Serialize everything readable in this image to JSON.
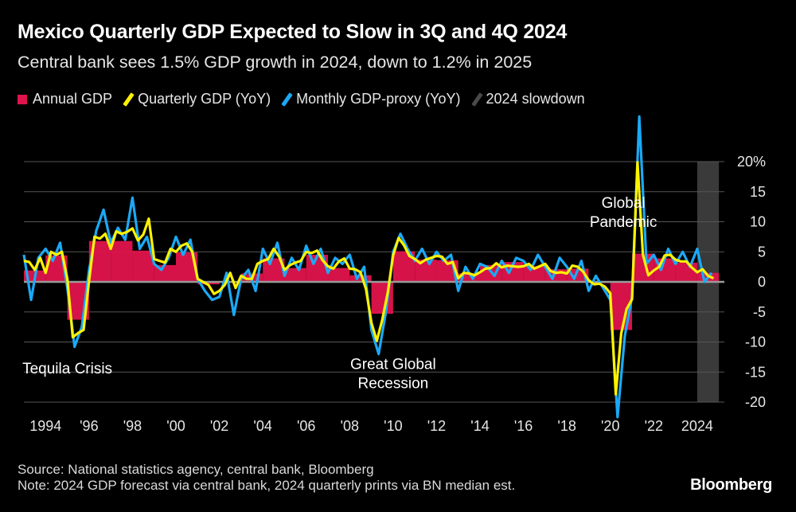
{
  "title": "Mexico Quarterly GDP Expected to Slow in 3Q and 4Q 2024",
  "subtitle": "Central bank sees 1.5% GDP growth in 2024, down to 1.2% in 2025",
  "legend": [
    {
      "label": "Annual GDP",
      "color": "#e0144c",
      "kind": "square"
    },
    {
      "label": "Quarterly GDP (YoY)",
      "color": "#fff200",
      "kind": "slash"
    },
    {
      "label": "Monthly GDP-proxy (YoY)",
      "color": "#1ba9f5",
      "kind": "slash"
    },
    {
      "label": "2024 slowdown",
      "color": "#3a3a3a",
      "kind": "slash"
    }
  ],
  "source_line1": "Source: National statistics agency, central bank, Bloomberg",
  "source_line2": "Note: 2024 GDP forecast via central bank, 2024 quarterly prints via BN median est.",
  "brand": "Bloomberg",
  "colors": {
    "annual": "#e0144c",
    "quarterly": "#fff200",
    "monthly": "#1ba9f5",
    "shade": "#3a3a3a",
    "grid": "#555555",
    "zero": "#9a9a9a"
  },
  "chart_data": {
    "type": "line",
    "title": "Mexico Quarterly GDP Expected to Slow in 3Q and 4Q 2024",
    "ylabel": "",
    "xlabel": "",
    "xlim": [
      1993.0,
      2025.25
    ],
    "ylim": [
      -20,
      20
    ],
    "y_ticks": [
      20,
      15,
      10,
      5,
      0,
      -5,
      -10,
      -15,
      -20
    ],
    "y_tick_labels": [
      "20%",
      "15",
      "10",
      "5",
      "0",
      "-5",
      "-10",
      "-15",
      "-20"
    ],
    "x_ticks": [
      1994,
      1996,
      1998,
      2000,
      2002,
      2004,
      2006,
      2008,
      2010,
      2012,
      2014,
      2016,
      2018,
      2020,
      2022,
      2024
    ],
    "x_tick_labels": [
      "1994",
      "'96",
      "'98",
      "'00",
      "'02",
      "'04",
      "'06",
      "'08",
      "'10",
      "'12",
      "'14",
      "'16",
      "'18",
      "'20",
      "'22",
      "2024"
    ],
    "shaded_region": {
      "label": "2024 slowdown",
      "x_start": 2024.0,
      "x_end": 2025.0
    },
    "annual_gdp": {
      "name": "Annual GDP",
      "years": [
        1993,
        1994,
        1995,
        1996,
        1997,
        1998,
        1999,
        2000,
        2001,
        2002,
        2003,
        2004,
        2005,
        2006,
        2007,
        2008,
        2009,
        2010,
        2011,
        2012,
        2013,
        2014,
        2015,
        2016,
        2017,
        2018,
        2019,
        2020,
        2021,
        2022,
        2023,
        2024
      ],
      "values": [
        1.9,
        4.4,
        -6.3,
        6.8,
        6.8,
        5.2,
        2.8,
        4.9,
        -0.4,
        0.0,
        1.4,
        3.9,
        2.3,
        4.5,
        2.3,
        1.1,
        -5.3,
        5.1,
        3.7,
        3.6,
        1.4,
        2.8,
        3.3,
        2.6,
        2.1,
        2.2,
        -0.2,
        -8.0,
        4.7,
        3.9,
        3.2,
        1.5
      ]
    },
    "quarterly_gdp": {
      "name": "Quarterly GDP (YoY)",
      "x": [
        1993.0,
        1993.25,
        1993.5,
        1993.75,
        1994.0,
        1994.25,
        1994.5,
        1994.75,
        1995.0,
        1995.25,
        1995.5,
        1995.75,
        1996.0,
        1996.25,
        1996.5,
        1996.75,
        1997.0,
        1997.25,
        1997.5,
        1997.75,
        1998.0,
        1998.25,
        1998.5,
        1998.75,
        1999.0,
        1999.25,
        1999.5,
        1999.75,
        2000.0,
        2000.25,
        2000.5,
        2000.75,
        2001.0,
        2001.25,
        2001.5,
        2001.75,
        2002.0,
        2002.25,
        2002.5,
        2002.75,
        2003.0,
        2003.25,
        2003.5,
        2003.75,
        2004.0,
        2004.25,
        2004.5,
        2004.75,
        2005.0,
        2005.25,
        2005.5,
        2005.75,
        2006.0,
        2006.25,
        2006.5,
        2006.75,
        2007.0,
        2007.25,
        2007.5,
        2007.75,
        2008.0,
        2008.25,
        2008.5,
        2008.75,
        2009.0,
        2009.25,
        2009.5,
        2009.75,
        2010.0,
        2010.25,
        2010.5,
        2010.75,
        2011.0,
        2011.25,
        2011.5,
        2011.75,
        2012.0,
        2012.25,
        2012.5,
        2012.75,
        2013.0,
        2013.25,
        2013.5,
        2013.75,
        2014.0,
        2014.25,
        2014.5,
        2014.75,
        2015.0,
        2015.25,
        2015.5,
        2015.75,
        2016.0,
        2016.25,
        2016.5,
        2016.75,
        2017.0,
        2017.25,
        2017.5,
        2017.75,
        2018.0,
        2018.25,
        2018.5,
        2018.75,
        2019.0,
        2019.25,
        2019.5,
        2019.75,
        2020.0,
        2020.25,
        2020.5,
        2020.75,
        2021.0,
        2021.25,
        2021.5,
        2021.75,
        2022.0,
        2022.25,
        2022.5,
        2022.75,
        2023.0,
        2023.25,
        2023.5,
        2023.75,
        2024.0,
        2024.25,
        2024.5,
        2024.75
      ],
      "values": [
        3.5,
        3.3,
        2.0,
        4.0,
        1.5,
        5.0,
        4.5,
        5.0,
        0.5,
        -9.2,
        -8.5,
        -8.0,
        0.2,
        7.5,
        7.2,
        8.0,
        5.5,
        8.4,
        8.0,
        8.3,
        8.9,
        6.9,
        7.9,
        10.5,
        3.8,
        3.5,
        3.2,
        5.5,
        5.0,
        6.0,
        6.4,
        5.0,
        0.5,
        0.0,
        -0.5,
        -2.0,
        -1.5,
        -0.5,
        1.5,
        -1.0,
        1.0,
        0.5,
        0.5,
        3.0,
        3.5,
        3.8,
        5.5,
        4.2,
        2.0,
        2.8,
        3.2,
        3.5,
        5.0,
        4.8,
        5.2,
        3.6,
        2.6,
        2.2,
        3.4,
        3.9,
        2.2,
        2.1,
        1.6,
        -1.2,
        -6.8,
        -9.8,
        -6.3,
        -1.8,
        4.4,
        7.3,
        6.1,
        4.3,
        3.8,
        3.1,
        3.7,
        4.0,
        4.3,
        4.2,
        3.0,
        3.3,
        0.6,
        1.5,
        1.4,
        1.1,
        1.6,
        2.2,
        2.3,
        3.1,
        2.4,
        2.7,
        2.6,
        2.5,
        2.6,
        3.0,
        2.2,
        2.6,
        3.0,
        1.8,
        1.5,
        1.6,
        1.4,
        2.7,
        2.5,
        1.7,
        0.3,
        -0.4,
        -0.3,
        -0.8,
        -1.9,
        -18.7,
        -8.6,
        -4.5,
        -2.9,
        19.9,
        4.5,
        1.1,
        1.9,
        2.5,
        4.4,
        4.5,
        3.7,
        3.4,
        3.4,
        2.4,
        1.6,
        2.1,
        1.0,
        0.6
      ]
    },
    "monthly_gdp_proxy": {
      "name": "Monthly GDP-proxy (YoY)",
      "x": [
        1993.0,
        1993.333,
        1993.667,
        1994.0,
        1994.333,
        1994.667,
        1995.0,
        1995.333,
        1995.667,
        1996.0,
        1996.333,
        1996.667,
        1997.0,
        1997.333,
        1997.667,
        1998.0,
        1998.333,
        1998.667,
        1999.0,
        1999.333,
        1999.667,
        2000.0,
        2000.333,
        2000.667,
        2001.0,
        2001.333,
        2001.667,
        2002.0,
        2002.333,
        2002.667,
        2003.0,
        2003.333,
        2003.667,
        2004.0,
        2004.333,
        2004.667,
        2005.0,
        2005.333,
        2005.667,
        2006.0,
        2006.333,
        2006.667,
        2007.0,
        2007.333,
        2007.667,
        2008.0,
        2008.333,
        2008.667,
        2009.0,
        2009.333,
        2009.667,
        2010.0,
        2010.333,
        2010.667,
        2011.0,
        2011.333,
        2011.667,
        2012.0,
        2012.333,
        2012.667,
        2013.0,
        2013.333,
        2013.667,
        2014.0,
        2014.333,
        2014.667,
        2015.0,
        2015.333,
        2015.667,
        2016.0,
        2016.333,
        2016.667,
        2017.0,
        2017.333,
        2017.667,
        2018.0,
        2018.333,
        2018.667,
        2019.0,
        2019.333,
        2019.667,
        2020.0,
        2020.333,
        2020.667,
        2021.0,
        2021.333,
        2021.667,
        2022.0,
        2022.333,
        2022.667,
        2023.0,
        2023.333,
        2023.667,
        2024.0,
        2024.333,
        2024.667
      ],
      "values": [
        4.5,
        -3.0,
        4.0,
        5.5,
        3.5,
        6.5,
        -1.0,
        -10.8,
        -7.5,
        2.0,
        8.5,
        12.0,
        6.5,
        9.0,
        7.0,
        14.0,
        5.5,
        7.5,
        3.0,
        2.0,
        4.0,
        7.5,
        4.5,
        7.0,
        0.5,
        -1.5,
        -3.0,
        -2.5,
        1.5,
        -5.5,
        0.5,
        2.0,
        -1.5,
        5.5,
        3.0,
        6.5,
        1.0,
        4.0,
        2.0,
        6.0,
        3.0,
        5.5,
        1.5,
        4.0,
        3.0,
        4.5,
        0.5,
        2.5,
        -8.0,
        -12.0,
        -5.0,
        5.0,
        8.0,
        5.5,
        3.5,
        5.5,
        3.0,
        5.0,
        3.5,
        4.5,
        -1.5,
        2.5,
        0.5,
        3.0,
        2.5,
        1.0,
        3.5,
        1.5,
        4.0,
        3.5,
        2.0,
        4.5,
        2.5,
        0.5,
        4.0,
        2.5,
        0.5,
        3.5,
        -1.5,
        1.0,
        -1.0,
        -3.0,
        -22.5,
        -9.0,
        -2.5,
        27.5,
        3.0,
        4.5,
        2.0,
        5.5,
        3.0,
        5.0,
        2.5,
        5.5,
        0.0,
        1.5
      ]
    },
    "annotations": [
      {
        "lines": [
          "Tequila Crisis"
        ],
        "x": 1995.0,
        "y": -15.2
      },
      {
        "lines": [
          "Great Global",
          "Recession"
        ],
        "x": 2010.0,
        "y": -14.5
      },
      {
        "lines": [
          "Global",
          "Pandemic"
        ],
        "x": 2020.6,
        "y": 12.3
      }
    ]
  }
}
